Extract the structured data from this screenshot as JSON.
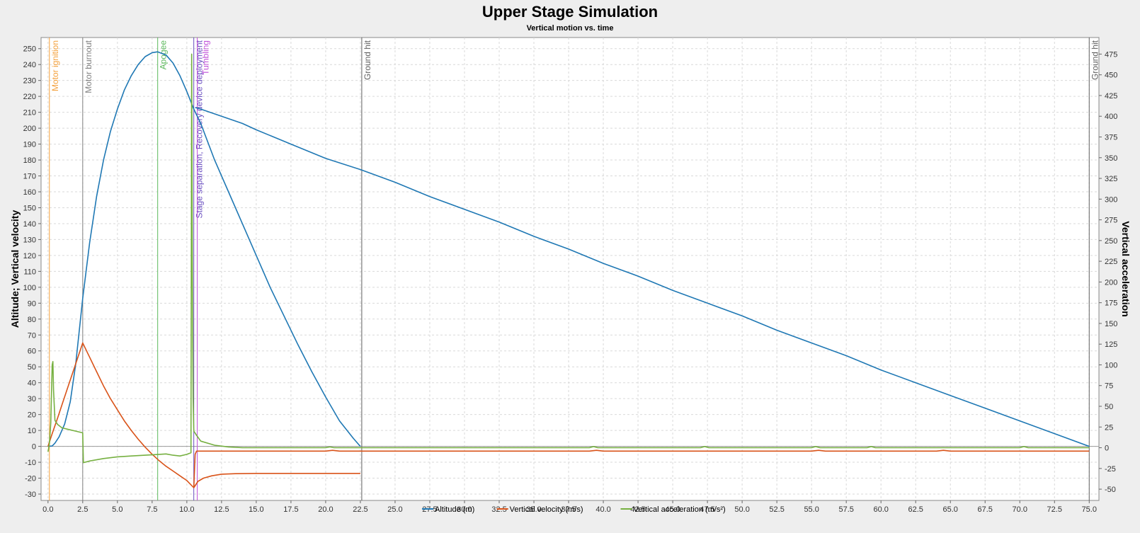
{
  "chart_data": {
    "type": "line",
    "title": "Upper Stage Simulation",
    "subtitle": "Vertical motion vs. time",
    "ylabel": "Altitude; Vertical velocity",
    "y2label": "Vertical acceleration",
    "xlim": [
      -0.5,
      75.7
    ],
    "ylim": [
      -34,
      257
    ],
    "y2lim": [
      -63.6,
      495
    ],
    "x_ticks": [
      "0.0",
      "2.5",
      "5.0",
      "7.5",
      "10.0",
      "12.5",
      "15.0",
      "17.5",
      "20.0",
      "22.5",
      "25.0",
      "27.5",
      "30.0",
      "32.5",
      "35.0",
      "37.5",
      "40.0",
      "42.5",
      "45.0",
      "47.5",
      "50.0",
      "52.5",
      "55.0",
      "57.5",
      "60.0",
      "62.5",
      "65.0",
      "67.5",
      "70.0",
      "72.5",
      "75.0"
    ],
    "y_ticks": [
      -30,
      -20,
      -10,
      0,
      10,
      20,
      30,
      40,
      50,
      60,
      70,
      80,
      90,
      100,
      110,
      120,
      130,
      140,
      150,
      160,
      170,
      180,
      190,
      200,
      210,
      220,
      230,
      240,
      250
    ],
    "y2_ticks": [
      -50,
      -25,
      0,
      25,
      50,
      75,
      100,
      125,
      150,
      175,
      200,
      225,
      250,
      275,
      300,
      325,
      350,
      375,
      400,
      425,
      450,
      475
    ],
    "grid": true,
    "legend_position": "bottom",
    "series": [
      {
        "name": "Altitude (m)",
        "axis": "left",
        "color": "#1f78b4",
        "points": [
          [
            0,
            0
          ],
          [
            0.3,
            0.2
          ],
          [
            0.5,
            2
          ],
          [
            0.8,
            6
          ],
          [
            1.2,
            14
          ],
          [
            1.6,
            28
          ],
          [
            2.0,
            52
          ],
          [
            2.5,
            93
          ],
          [
            3.0,
            128
          ],
          [
            3.5,
            157
          ],
          [
            4.0,
            180
          ],
          [
            4.5,
            198
          ],
          [
            5.0,
            212
          ],
          [
            5.5,
            224
          ],
          [
            6.0,
            233
          ],
          [
            6.5,
            240
          ],
          [
            7.0,
            245
          ],
          [
            7.5,
            247.5
          ],
          [
            7.9,
            248
          ],
          [
            8.5,
            246
          ],
          [
            9.0,
            241
          ],
          [
            9.5,
            233
          ],
          [
            10.0,
            223
          ],
          [
            10.5,
            212
          ],
          [
            11.0,
            203
          ]
        ]
      },
      {
        "name": "",
        "axis": "left",
        "color": "#1f78b4",
        "points": [
          [
            11.0,
            203
          ],
          [
            12.0,
            180
          ],
          [
            13.0,
            160
          ],
          [
            14.0,
            140
          ],
          [
            15.0,
            120
          ],
          [
            16.0,
            100
          ],
          [
            17.0,
            82
          ],
          [
            18.0,
            64
          ],
          [
            19.0,
            47
          ],
          [
            20.0,
            31
          ],
          [
            21.0,
            16
          ],
          [
            22.0,
            5
          ],
          [
            22.5,
            0
          ]
        ]
      },
      {
        "name": "",
        "axis": "left",
        "color": "#1f78b4",
        "points": [
          [
            10.6,
            213
          ],
          [
            11.0,
            212
          ],
          [
            12.0,
            209
          ],
          [
            13.0,
            206
          ],
          [
            14.0,
            203
          ],
          [
            15.0,
            199
          ],
          [
            17.5,
            190
          ],
          [
            20.0,
            181
          ],
          [
            22.5,
            174
          ],
          [
            25.0,
            166
          ],
          [
            27.5,
            157
          ],
          [
            30.0,
            149
          ],
          [
            32.5,
            141
          ],
          [
            35.0,
            132
          ],
          [
            37.5,
            124
          ],
          [
            40.0,
            115
          ],
          [
            42.5,
            107
          ],
          [
            45.0,
            98
          ],
          [
            47.5,
            90
          ],
          [
            50.0,
            82
          ],
          [
            52.5,
            73
          ],
          [
            55.0,
            65
          ],
          [
            57.5,
            57
          ],
          [
            60.0,
            48
          ],
          [
            62.5,
            40
          ],
          [
            65.0,
            32
          ],
          [
            67.5,
            24
          ],
          [
            70.0,
            16
          ],
          [
            72.5,
            8
          ],
          [
            75.0,
            0
          ]
        ]
      },
      {
        "name": "Vertical velocity (m/s)",
        "axis": "left",
        "color": "#d95319",
        "points": [
          [
            0,
            0
          ],
          [
            0.3,
            8
          ],
          [
            0.7,
            18
          ],
          [
            1.0,
            26
          ],
          [
            1.5,
            39
          ],
          [
            2.0,
            52
          ],
          [
            2.5,
            65
          ],
          [
            3.0,
            56
          ],
          [
            3.5,
            47
          ],
          [
            4.0,
            38
          ],
          [
            4.5,
            30
          ],
          [
            5.0,
            23
          ],
          [
            5.5,
            16
          ],
          [
            6.0,
            10
          ],
          [
            6.5,
            4.5
          ],
          [
            7.0,
            -0.5
          ],
          [
            7.5,
            -5
          ],
          [
            8.0,
            -9
          ],
          [
            8.5,
            -12.5
          ],
          [
            9.0,
            -15.5
          ],
          [
            9.5,
            -18.5
          ],
          [
            10.0,
            -21.5
          ],
          [
            10.5,
            -26
          ],
          [
            10.8,
            -22
          ],
          [
            11.2,
            -20
          ],
          [
            11.8,
            -18.5
          ],
          [
            12.5,
            -17.5
          ],
          [
            13.5,
            -17.2
          ],
          [
            15.0,
            -17
          ],
          [
            22.5,
            -17
          ]
        ]
      },
      {
        "name": "",
        "axis": "left",
        "color": "#d95319",
        "points": [
          [
            10.5,
            -26
          ],
          [
            10.6,
            -5
          ],
          [
            10.7,
            -3
          ],
          [
            11.0,
            -3
          ],
          [
            20.0,
            -3
          ],
          [
            20.5,
            -2.5
          ],
          [
            21.0,
            -3
          ],
          [
            39.0,
            -3
          ],
          [
            39.5,
            -2.5
          ],
          [
            40.0,
            -3
          ],
          [
            55.0,
            -3
          ],
          [
            55.5,
            -2.5
          ],
          [
            56.0,
            -3
          ],
          [
            64.0,
            -3
          ],
          [
            64.5,
            -2.5
          ],
          [
            65.0,
            -3
          ],
          [
            75.0,
            -3
          ]
        ]
      },
      {
        "name": "Vertical acceleration (m/s²)",
        "axis": "right",
        "color": "#76b041",
        "points": [
          [
            0,
            -5
          ],
          [
            0.1,
            5
          ],
          [
            0.2,
            30
          ],
          [
            0.3,
            100
          ],
          [
            0.35,
            104
          ],
          [
            0.4,
            70
          ],
          [
            0.5,
            33
          ],
          [
            0.7,
            28
          ],
          [
            1.0,
            24
          ],
          [
            1.5,
            22
          ],
          [
            2.0,
            20
          ],
          [
            2.5,
            18
          ],
          [
            2.55,
            -18
          ],
          [
            3.0,
            -16
          ],
          [
            4.0,
            -13
          ],
          [
            5.0,
            -11
          ],
          [
            6.0,
            -10
          ],
          [
            7.0,
            -9
          ],
          [
            8.0,
            -8
          ],
          [
            8.5,
            -7.5
          ],
          [
            9.0,
            -9
          ],
          [
            9.5,
            -10
          ],
          [
            10.0,
            -8
          ],
          [
            10.3,
            -6
          ],
          [
            10.35,
            475
          ],
          [
            10.4,
            200
          ],
          [
            10.45,
            60
          ],
          [
            10.5,
            20
          ],
          [
            10.7,
            15
          ],
          [
            11.0,
            8
          ],
          [
            12.0,
            3
          ],
          [
            13.0,
            1
          ],
          [
            14.0,
            0
          ],
          [
            20.0,
            0
          ],
          [
            20.3,
            1
          ],
          [
            20.6,
            0
          ],
          [
            39.0,
            0
          ],
          [
            39.3,
            1.5
          ],
          [
            39.6,
            0
          ],
          [
            47.0,
            0
          ],
          [
            47.3,
            1.5
          ],
          [
            47.6,
            0
          ],
          [
            55.0,
            0
          ],
          [
            55.3,
            1.5
          ],
          [
            55.6,
            0
          ],
          [
            59.0,
            0
          ],
          [
            59.3,
            1.5
          ],
          [
            59.6,
            0
          ],
          [
            70.0,
            0
          ],
          [
            70.3,
            1.5
          ],
          [
            70.6,
            0
          ],
          [
            75.0,
            0
          ]
        ]
      }
    ],
    "events": [
      {
        "time": 0.1,
        "label": "Motor ignition",
        "color": "#f4a03b"
      },
      {
        "time": 2.5,
        "label": "Motor burnout",
        "color": "#808080"
      },
      {
        "time": 7.9,
        "label": "Apogee",
        "color": "#5cb85c"
      },
      {
        "time": 10.5,
        "label": "Stage separation, Recovery device deployment",
        "color": "#6a4fc0"
      },
      {
        "time": 10.75,
        "label": "Tumbling",
        "color": "#c04fd8"
      },
      {
        "time": 22.6,
        "label": "Ground hit",
        "color": "#606060"
      },
      {
        "time": 75.0,
        "label": "Ground hit",
        "color": "#606060"
      }
    ]
  }
}
